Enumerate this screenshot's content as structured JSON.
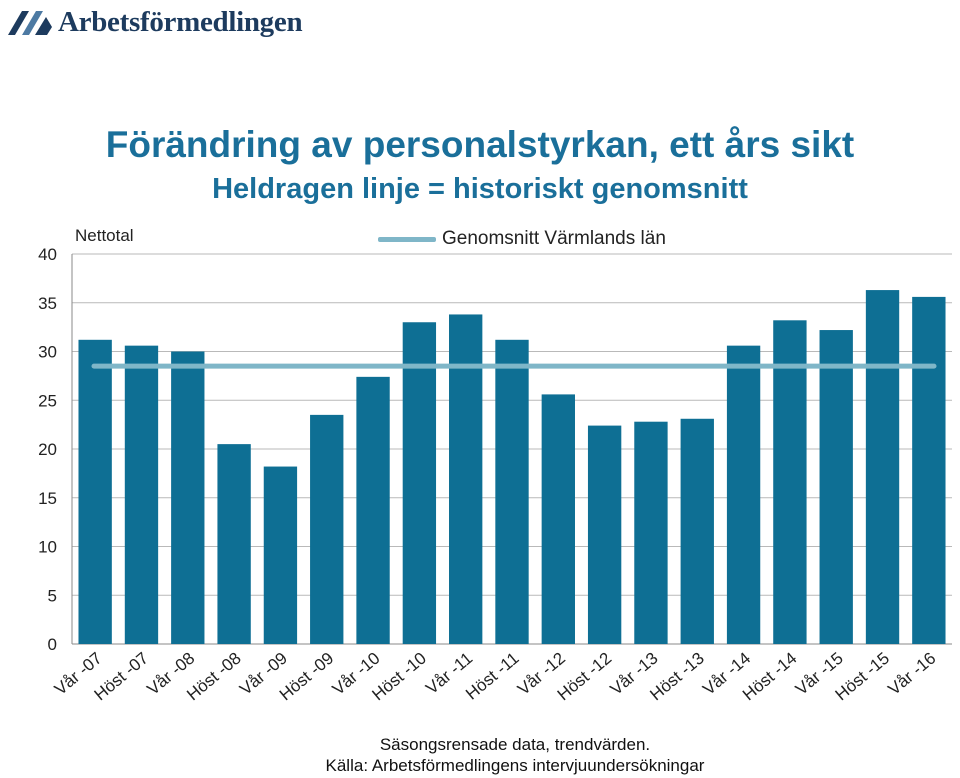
{
  "brand": {
    "name": "Arbetsförmedlingen",
    "logo_icon": "arbetsformedlingen-logo-icon",
    "color": "#1d3b5e"
  },
  "chart_data": {
    "type": "bar",
    "title": "Förändring av personalstyrkan, ett års sikt",
    "subtitle": "Heldragen linje = historiskt genomsnitt",
    "ylabel": "Nettotal",
    "xlabel": "",
    "ylim": [
      0,
      40
    ],
    "yticks": [
      0,
      5,
      10,
      15,
      20,
      25,
      30,
      35,
      40
    ],
    "categories": [
      "Vår -07",
      "Höst -07",
      "Vår -08",
      "Höst -08",
      "Vår -09",
      "Höst -09",
      "Vår -10",
      "Höst -10",
      "Vår -11",
      "Höst -11",
      "Vår -12",
      "Höst -12",
      "Vår -13",
      "Höst -13",
      "Vår -14",
      "Höst -14",
      "Vår -15",
      "Höst -15",
      "Vår -16"
    ],
    "values": [
      31.2,
      30.6,
      30.0,
      20.5,
      18.2,
      23.5,
      27.4,
      33.0,
      33.8,
      31.2,
      25.6,
      22.4,
      22.8,
      23.1,
      30.6,
      33.2,
      32.2,
      36.3,
      35.6
    ],
    "average_line": {
      "name": "Genomsnitt Värmlands län",
      "value": 28.5
    },
    "grid": "horizontal",
    "legend_position": "top-center",
    "colors": {
      "bar": "#0e6f94",
      "average": "#7fb6c8",
      "title": "#1a6f9a",
      "grid": "#b9b9b9"
    }
  },
  "notes": {
    "line1": "Säsongsrensade data, trendvärden.",
    "line2": "Källa: Arbetsförmedlingens intervjuundersökningar"
  }
}
